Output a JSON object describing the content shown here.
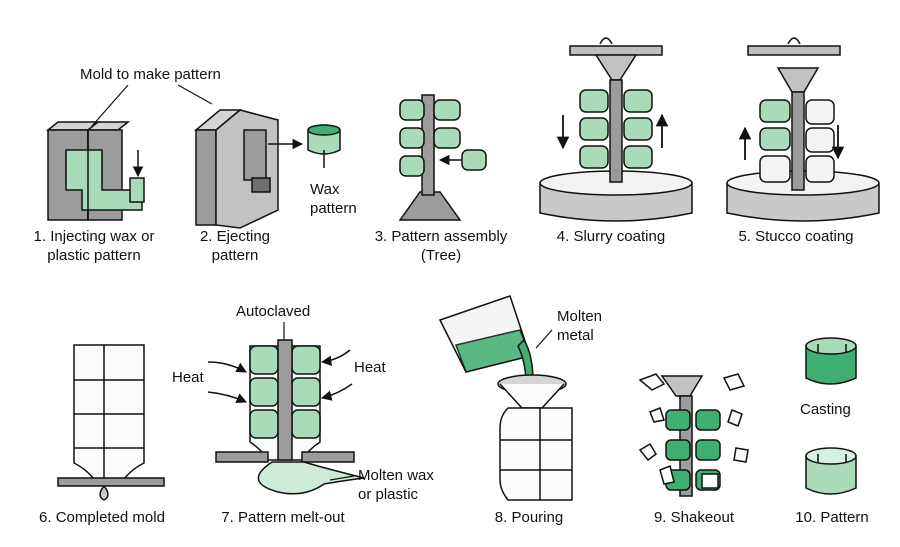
{
  "colors": {
    "green": "#a9dbbb",
    "green_dark": "#3fae72",
    "gray": "#9c9c9c",
    "gray_dark": "#6f6f6f",
    "gray_light": "#d4d4d4",
    "outline": "#111111"
  },
  "callouts": {
    "mold_to_make_pattern": "Mold to make pattern",
    "wax_pattern": [
      "Wax",
      "pattern"
    ],
    "autoclaved": "Autoclaved",
    "heat_left": "Heat",
    "heat_right": "Heat",
    "molten_wax": [
      "Molten wax",
      "or plastic"
    ],
    "molten_metal": [
      "Molten",
      "metal"
    ],
    "casting": "Casting"
  },
  "steps": [
    {
      "lines": [
        "1. Injecting wax or",
        "plastic pattern"
      ]
    },
    {
      "lines": [
        "2. Ejecting",
        "pattern"
      ]
    },
    {
      "lines": [
        "3. Pattern assembly",
        "(Tree)"
      ]
    },
    {
      "lines": [
        "4. Slurry coating"
      ]
    },
    {
      "lines": [
        "5. Stucco coating"
      ]
    },
    {
      "lines": [
        "6. Completed mold"
      ]
    },
    {
      "lines": [
        "7. Pattern melt-out"
      ]
    },
    {
      "lines": [
        "8. Pouring"
      ]
    },
    {
      "lines": [
        "9. Shakeout"
      ]
    },
    {
      "lines": [
        "10. Pattern"
      ]
    }
  ]
}
